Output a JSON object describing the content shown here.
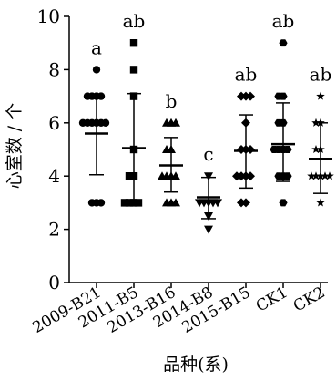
{
  "chart_data": {
    "type": "scatter",
    "xlabel": "品种(系)",
    "ylabel": "心室数 / 个",
    "ylim": [
      0,
      10
    ],
    "yticks": [
      0,
      2,
      4,
      6,
      8,
      10
    ],
    "categories": [
      "2009-B21",
      "2011-B5",
      "2013-B16",
      "2014-B8",
      "2015-B15",
      "CK1",
      "CK2"
    ],
    "grid": false,
    "series": [
      {
        "category": "2009-B21",
        "marker": "circle",
        "significance": "a",
        "mean": 5.6,
        "sd_low": 4.05,
        "sd_high": 6.95,
        "points": [
          8,
          7,
          7,
          7,
          7,
          6,
          6,
          6,
          6,
          6,
          6,
          3,
          3,
          3
        ]
      },
      {
        "category": "2011-B5",
        "marker": "square",
        "significance": "ab",
        "mean": 5.05,
        "sd_low": 3.0,
        "sd_high": 7.1,
        "points": [
          9,
          8,
          7,
          5,
          4,
          4,
          3,
          3,
          3,
          3
        ]
      },
      {
        "category": "2013-B16",
        "marker": "triangle-up",
        "significance": "b",
        "mean": 4.4,
        "sd_low": 3.4,
        "sd_high": 5.45,
        "points": [
          6,
          6,
          6,
          5,
          5,
          4,
          4,
          4,
          4,
          3,
          3,
          3
        ]
      },
      {
        "category": "2014-B8",
        "marker": "triangle-down",
        "significance": "c",
        "mean": 3.2,
        "sd_low": 2.4,
        "sd_high": 3.95,
        "points": [
          4,
          3,
          3,
          3,
          3,
          3,
          2.5,
          2
        ]
      },
      {
        "category": "2015-B15",
        "marker": "diamond",
        "significance": "ab",
        "mean": 4.95,
        "sd_low": 3.55,
        "sd_high": 6.3,
        "points": [
          7,
          7,
          7,
          6,
          5,
          5,
          5,
          4,
          4,
          4,
          4,
          3,
          3
        ]
      },
      {
        "category": "CK1",
        "marker": "hexagon",
        "significance": "ab",
        "mean": 5.2,
        "sd_low": 3.8,
        "sd_high": 6.75,
        "points": [
          9,
          7,
          7,
          6,
          6,
          5,
          5,
          5,
          5,
          4,
          4,
          4,
          3
        ]
      },
      {
        "category": "CK2",
        "marker": "star",
        "significance": "ab",
        "mean": 4.65,
        "sd_low": 3.35,
        "sd_high": 6.0,
        "points": [
          7,
          6,
          6,
          5,
          5,
          4,
          4,
          4,
          4,
          4,
          3
        ]
      }
    ]
  }
}
